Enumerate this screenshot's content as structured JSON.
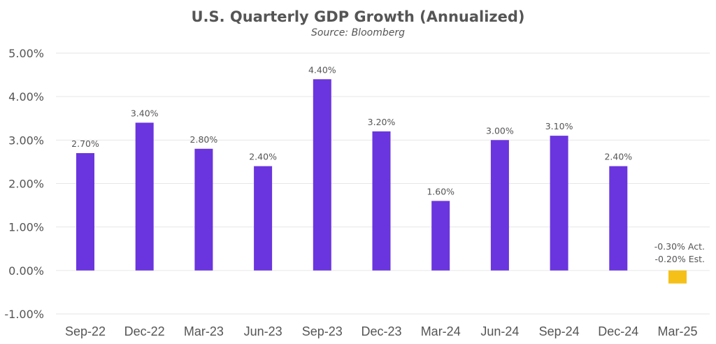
{
  "chart_data": {
    "type": "bar",
    "title": "U.S. Quarterly GDP Growth (Annualized)",
    "subtitle": "Source: Bloomberg",
    "xlabel": "",
    "ylabel": "",
    "ylim": [
      -1,
      5
    ],
    "yticks": [
      5,
      4,
      3,
      2,
      1,
      0,
      -1
    ],
    "ytick_labels": [
      "5.00%",
      "4.00%",
      "3.00%",
      "2.00%",
      "1.00%",
      "0.00%",
      "-1.00%"
    ],
    "grid": true,
    "legend": "none",
    "categories": [
      "Sep-22",
      "Dec-22",
      "Mar-23",
      "Jun-23",
      "Sep-23",
      "Dec-23",
      "Mar-24",
      "Jun-24",
      "Sep-24",
      "Dec-24",
      "Mar-25"
    ],
    "values": [
      2.7,
      3.4,
      2.8,
      2.4,
      4.4,
      3.2,
      1.6,
      3.0,
      3.1,
      2.4,
      -0.3
    ],
    "data_labels": [
      [
        "2.70%"
      ],
      [
        "3.40%"
      ],
      [
        "2.80%"
      ],
      [
        "2.40%"
      ],
      [
        "4.40%"
      ],
      [
        "3.20%"
      ],
      [
        "1.60%"
      ],
      [
        "3.00%"
      ],
      [
        "3.10%"
      ],
      [
        "2.40%"
      ],
      [
        "-0.30% Act.",
        "-0.20% Est."
      ]
    ],
    "colors": [
      "#6a35de",
      "#6a35de",
      "#6a35de",
      "#6a35de",
      "#6a35de",
      "#6a35de",
      "#6a35de",
      "#6a35de",
      "#6a35de",
      "#6a35de",
      "#f5c018"
    ],
    "annotations": [
      {
        "category": "Mar-25",
        "actual": -0.3,
        "estimate": -0.2,
        "text": [
          "-0.30% Act.",
          "-0.20% Est."
        ]
      }
    ]
  }
}
